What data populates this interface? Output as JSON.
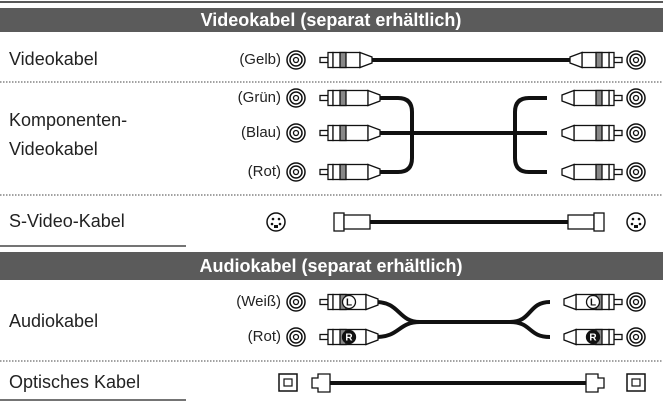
{
  "sections": [
    {
      "title": "Videokabel (separat erhältlich)",
      "rows": [
        {
          "name": [
            "Videokabel"
          ],
          "plugs": [
            "(Gelb)"
          ]
        },
        {
          "name": [
            "Komponenten-",
            "Videokabel"
          ],
          "plugs": [
            "(Grün)",
            "(Blau)",
            "(Rot)"
          ]
        },
        {
          "name": [
            "S-Video-Kabel"
          ],
          "plugs": []
        }
      ]
    },
    {
      "title": "Audiokabel (separat erhältlich)",
      "rows": [
        {
          "name": [
            "Audiokabel"
          ],
          "plugs": [
            "(Weiß)",
            "(Rot)"
          ],
          "plug_marks": [
            "L",
            "R"
          ]
        },
        {
          "name": [
            "Optisches Kabel"
          ],
          "plugs": []
        }
      ]
    }
  ]
}
